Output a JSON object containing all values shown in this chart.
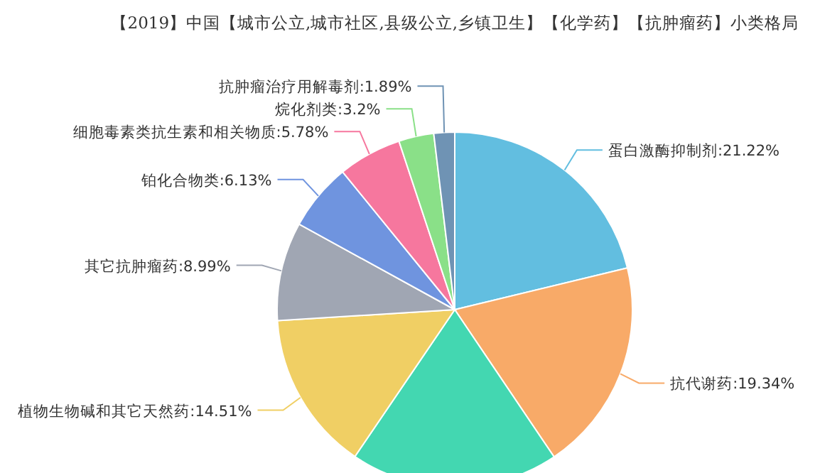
{
  "chart_data": {
    "type": "pie",
    "title": "【2019】中国【城市公立,城市社区,县级公立,乡镇卫生】【化学药】【抗肿瘤药】小类格局",
    "categories": [
      "蛋白激酶抑制剂",
      "抗代谢药",
      null,
      "植物生物碱和其它天然药",
      "其它抗肿瘤药",
      "铂化合物类",
      "细胞毒素类抗生素和相关物质",
      "烷化剂类",
      "抗肿瘤治疗用解毒剂"
    ],
    "values": [
      21.22,
      19.34,
      18.94,
      14.51,
      8.99,
      6.13,
      5.78,
      3.2,
      1.89
    ],
    "colors": [
      "#62bee0",
      "#f8aa68",
      "#43d7b1",
      "#f0cf64",
      "#a0a6b3",
      "#6f94df",
      "#f6779e",
      "#8ae088",
      "#6f93b4"
    ],
    "value_labels": [
      ":21.22%",
      ":19.34%",
      null,
      ":14.51%",
      ":8.99%",
      ":6.13%",
      ":5.78%",
      ":3.2%",
      ":1.89%"
    ]
  }
}
